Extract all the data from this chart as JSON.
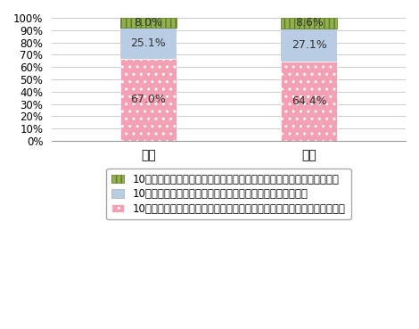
{
  "categories": [
    "件数",
    "規模"
  ],
  "series": [
    {
      "label": "10年ほど前と比べて、件数（規模）は少なく（小さく）なったと感じる",
      "values": [
        8.0,
        8.6
      ],
      "color": "#92b050",
      "hatch": "|||"
    },
    {
      "label": "10年ほど前と比べて、件数（規模）は同程度であると感じる",
      "values": [
        25.1,
        27.1
      ],
      "color": "#b8cce4",
      "hatch": ""
    },
    {
      "label": "10年ほど前と比べて、件数（規模）は多く（大きく）なっていると感じる",
      "values": [
        67.0,
        64.4
      ],
      "color": "#f4a0b4",
      "hatch": ".."
    }
  ],
  "ylim": [
    0,
    100
  ],
  "yticks": [
    0,
    10,
    20,
    30,
    40,
    50,
    60,
    70,
    80,
    90,
    100
  ],
  "ytick_labels": [
    "0%",
    "10%",
    "20%",
    "30%",
    "40%",
    "50%",
    "60%",
    "70%",
    "80%",
    "90%",
    "100%"
  ],
  "bar_width": 0.35,
  "background_color": "#ffffff",
  "grid_color": "#cccccc",
  "label_fontsize": 9,
  "legend_fontsize": 8.5
}
